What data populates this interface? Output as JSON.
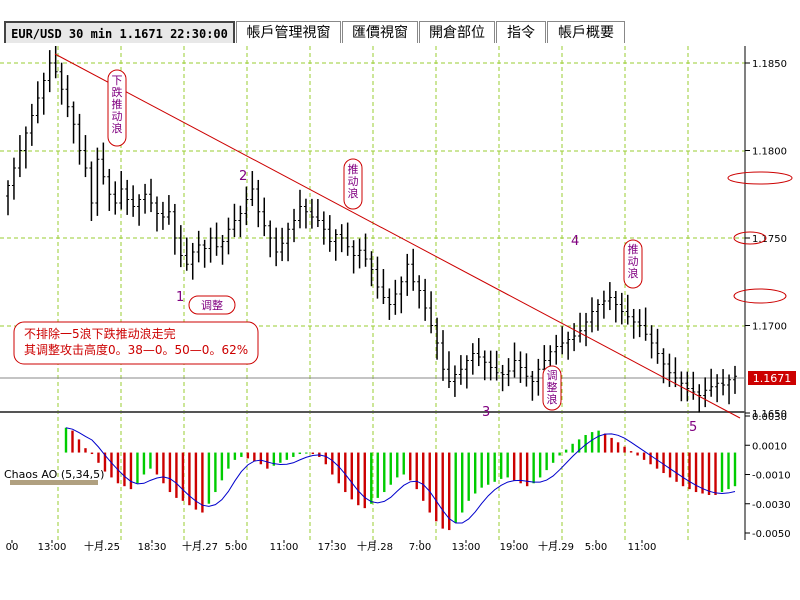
{
  "tabs": [
    {
      "label": "EUR/USD 30 min 1.1671 22:30:00",
      "active": true
    },
    {
      "label": "帳戶管理視窗",
      "active": false
    },
    {
      "label": "匯價視窗",
      "active": false
    },
    {
      "label": "開倉部位",
      "active": false
    },
    {
      "label": "指令",
      "active": false
    },
    {
      "label": "帳戶概要",
      "active": false
    }
  ],
  "chart_data": [
    {
      "type": "candlestick",
      "symbol": "EUR/USD",
      "timeframe": "30 min",
      "ylim": [
        1.163,
        1.187
      ],
      "yticks": [
        "1.1850",
        "1.1800",
        "1.1750",
        "1.1700",
        "1.1650"
      ],
      "current_price": "1.1671",
      "x_tick_labels": [
        "00",
        "13:00",
        "十月.25",
        "18:30",
        "十月.27",
        "5:00",
        "11:00",
        "17:30",
        "十月.28",
        "7:00",
        "13:00",
        "19:00",
        "十月.29",
        "5:00",
        "11:00"
      ],
      "close": [
        1.178,
        1.179,
        1.18,
        1.181,
        1.182,
        1.183,
        1.184,
        1.185,
        1.1845,
        1.1835,
        1.1825,
        1.1815,
        1.18,
        1.179,
        1.177,
        1.1795,
        1.1785,
        1.1775,
        1.177,
        1.1778,
        1.1772,
        1.1768,
        1.1772,
        1.1775,
        1.177,
        1.1764,
        1.1762,
        1.1765,
        1.175,
        1.174,
        1.1735,
        1.1742,
        1.1746,
        1.1744,
        1.175,
        1.1745,
        1.1748,
        1.1755,
        1.176,
        1.1764,
        1.1772,
        1.1778,
        1.1765,
        1.1757,
        1.175,
        1.1742,
        1.1747,
        1.1755,
        1.176,
        1.1768,
        1.1765,
        1.1762,
        1.176,
        1.1755,
        1.1748,
        1.1752,
        1.175,
        1.1745,
        1.174,
        1.1743,
        1.1738,
        1.1732,
        1.1722,
        1.1716,
        1.1712,
        1.1718,
        1.1725,
        1.1735,
        1.1725,
        1.172,
        1.171,
        1.17,
        1.169,
        1.1675,
        1.1668,
        1.1672,
        1.1675,
        1.168,
        1.1684,
        1.1682,
        1.1679,
        1.1676,
        1.1673,
        1.1672,
        1.1674,
        1.168,
        1.1676,
        1.1671,
        1.1668,
        1.1675,
        1.168,
        1.1685,
        1.1688,
        1.169,
        1.1692,
        1.1694,
        1.1697,
        1.1702,
        1.1708,
        1.1712,
        1.1714,
        1.1716,
        1.1712,
        1.1708,
        1.1705,
        1.1702,
        1.17,
        1.1695,
        1.169,
        1.1684,
        1.1678,
        1.1673,
        1.167,
        1.1667,
        1.1664,
        1.1662,
        1.166,
        1.1663,
        1.1665,
        1.1667,
        1.1666,
        1.1669,
        1.1671
      ],
      "trendline_label": "",
      "wave_labels": [
        "1",
        "2",
        "3",
        "4",
        "5"
      ],
      "annotations": [
        "下跌推动浪",
        "推动浪",
        "调整",
        "调整浪",
        "推动浪"
      ],
      "note": [
        "不排除一5浪下跌推动浪走完",
        "其调整攻击高度0。38—0。50—0。62%"
      ]
    },
    {
      "type": "bar",
      "indicator": "Chaos AO (5,34,5)",
      "ylim": [
        -0.0058,
        0.0038
      ],
      "yticks": [
        "0.0030",
        "0.0010",
        "-0.0010",
        "-0.0030",
        "-0.0050"
      ],
      "values": [
        0.0022,
        0.002,
        0.0014,
        0.0008,
        0.0004,
        -0.0002,
        -0.0008,
        -0.0012,
        -0.0016,
        -0.0018,
        -0.002,
        -0.0016,
        -0.001,
        -0.0006,
        -0.001,
        -0.0016,
        -0.0022,
        -0.0026,
        -0.0028,
        -0.0031,
        -0.0034,
        -0.0036,
        -0.003,
        -0.0022,
        -0.0014,
        -0.0006,
        0.0,
        0.0002,
        0.0001,
        -0.0001,
        -0.0003,
        -0.0006,
        -0.0004,
        -0.0002,
        0.0,
        0.0002,
        0.0004,
        0.0005,
        0.0004,
        0.0002,
        -0.0003,
        -0.001,
        -0.0016,
        -0.0022,
        -0.0027,
        -0.0031,
        -0.0033,
        -0.003,
        -0.0026,
        -0.0022,
        -0.0017,
        -0.0012,
        -0.001,
        -0.0014,
        -0.002,
        -0.0028,
        -0.0036,
        -0.0042,
        -0.0047,
        -0.0048,
        -0.0043,
        -0.0036,
        -0.0028,
        -0.0023,
        -0.0019,
        -0.0017,
        -0.0015,
        -0.0013,
        -0.0012,
        -0.0014,
        -0.0016,
        -0.0018,
        -0.0016,
        -0.0012,
        -0.0007,
        -0.0002,
        0.0003,
        0.0007,
        0.0011,
        0.0014,
        0.0017,
        0.0019,
        0.002,
        0.0018,
        0.0015,
        0.0012,
        0.0009,
        0.0006,
        0.0003,
        0.0,
        -0.0003,
        -0.0006,
        -0.0009,
        -0.0012,
        -0.0015,
        -0.0018,
        -0.002,
        -0.0022,
        -0.0023,
        -0.0024,
        -0.0024,
        -0.0022,
        -0.002,
        -0.0018
      ],
      "up_color": "#00cc00",
      "down_color": "#cc0000",
      "signal_color": "#0000cc"
    }
  ],
  "colors": {
    "background": "#ffffff",
    "grid": "#9acd32",
    "candle": "#000000",
    "trendline": "#cc0000",
    "annotation_text": "#800080",
    "annotation_border": "#cc0000",
    "wave_label": "#800080",
    "price_tag_bg": "#cc0000",
    "price_tag_text": "#ffffff"
  }
}
